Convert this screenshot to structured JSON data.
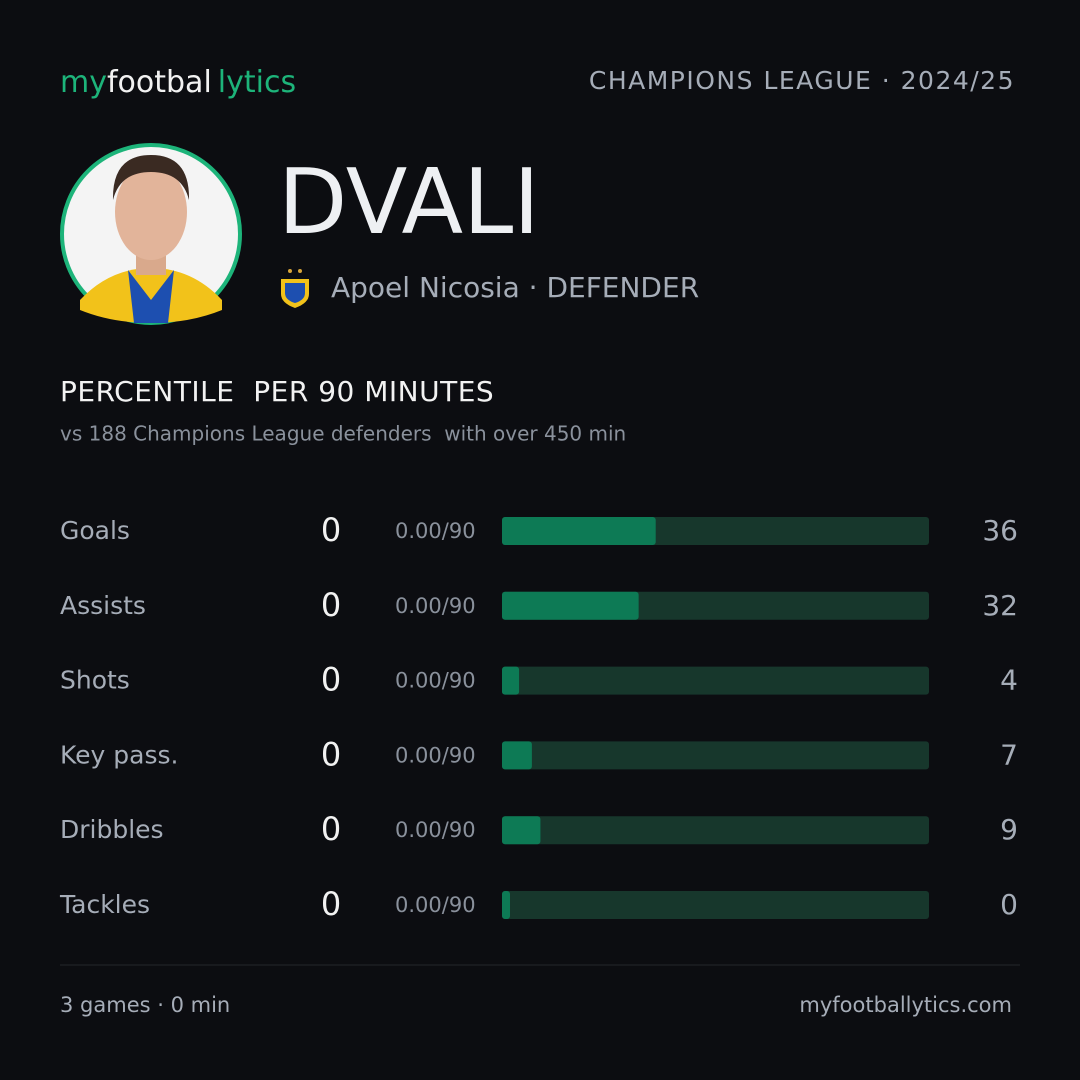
{
  "header": {
    "logo": [
      "my",
      "footbal",
      "lytics"
    ],
    "competition": "CHAMPIONS LEAGUE · 2024/25"
  },
  "player": {
    "name": "DVALI",
    "club_line": "Apoel Nicosia · DEFENDER"
  },
  "section": {
    "title": "PERCENTILE  PER 90 MINUTES",
    "subtitle": "vs 188 Champions League defenders  with over 450 min"
  },
  "rows": [
    {
      "label": "Goals",
      "value": 0,
      "per90": "0.00/90",
      "percentile": 36
    },
    {
      "label": "Assists",
      "value": 0,
      "per90": "0.00/90",
      "percentile": 32
    },
    {
      "label": "Shots",
      "value": 0,
      "per90": "0.00/90",
      "percentile": 4
    },
    {
      "label": "Key pass.",
      "value": 0,
      "per90": "0.00/90",
      "percentile": 7
    },
    {
      "label": "Dribbles",
      "value": 0,
      "per90": "0.00/90",
      "percentile": 9
    },
    {
      "label": "Tackles",
      "value": 0,
      "per90": "0.00/90",
      "percentile": 0
    }
  ],
  "footer": {
    "left": "3 games · 0 min",
    "right": "myfootballytics.com"
  }
}
